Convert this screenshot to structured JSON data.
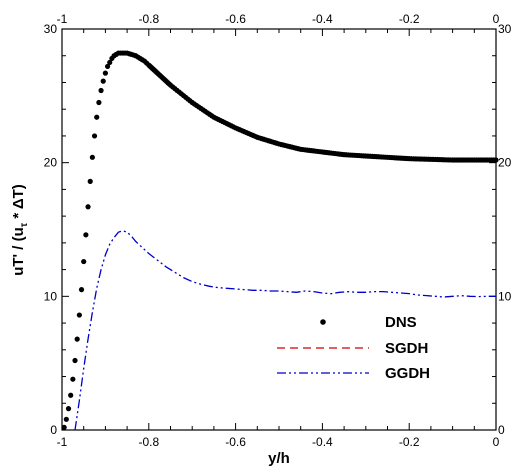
{
  "chart_data": {
    "type": "line",
    "xlabel": "y/h",
    "ylabel": "uT' / (u",
    "ylabel_sub": "τ",
    "ylabel_tail": " * ΔT)",
    "xlim": [
      -1,
      0
    ],
    "ylim": [
      0,
      30
    ],
    "x_ticks": [
      "-1",
      "-0.8",
      "-0.6",
      "-0.4",
      "-0.2",
      "0"
    ],
    "y_ticks": [
      "0",
      "10",
      "20",
      "30"
    ],
    "y_ticks_right": [
      "0",
      "10",
      "20",
      "30"
    ],
    "grid": false,
    "legend_position": "lower-right",
    "series": [
      {
        "name": "DNS",
        "style": "markers",
        "color": "#000000",
        "x": [
          -0.995,
          -0.99,
          -0.985,
          -0.98,
          -0.975,
          -0.97,
          -0.965,
          -0.96,
          -0.955,
          -0.95,
          -0.945,
          -0.94,
          -0.935,
          -0.93,
          -0.925,
          -0.92,
          -0.915,
          -0.91,
          -0.905,
          -0.9,
          -0.895,
          -0.89,
          -0.885,
          -0.88,
          -0.875,
          -0.87,
          -0.865,
          -0.86,
          -0.855,
          -0.85,
          -0.845,
          -0.84,
          -0.835,
          -0.83,
          -0.825,
          -0.82,
          -0.815,
          -0.81,
          -0.805,
          -0.8,
          -0.78,
          -0.75,
          -0.7,
          -0.65,
          -0.6,
          -0.55,
          -0.5,
          -0.45,
          -0.4,
          -0.35,
          -0.3,
          -0.25,
          -0.2,
          -0.15,
          -0.1,
          -0.05,
          0.0
        ],
        "y": [
          0.2,
          0.8,
          1.6,
          2.6,
          3.8,
          5.2,
          6.8,
          8.6,
          10.5,
          12.6,
          14.6,
          16.7,
          18.6,
          20.4,
          22.0,
          23.4,
          24.5,
          25.4,
          26.1,
          26.7,
          27.2,
          27.5,
          27.8,
          28.0,
          28.1,
          28.2,
          28.2,
          28.2,
          28.2,
          28.2,
          28.15,
          28.1,
          28.05,
          28.0,
          27.9,
          27.8,
          27.7,
          27.6,
          27.45,
          27.3,
          26.7,
          25.8,
          24.5,
          23.4,
          22.6,
          21.9,
          21.4,
          21.0,
          20.8,
          20.6,
          20.5,
          20.4,
          20.3,
          20.25,
          20.2,
          20.2,
          20.2
        ]
      },
      {
        "name": "SGDH",
        "style": "dashed",
        "color": "#cc0000",
        "x": [],
        "y": []
      },
      {
        "name": "GGDH",
        "style": "dash-dot-dot",
        "color": "#0000cc",
        "x": [
          -0.97,
          -0.96,
          -0.95,
          -0.94,
          -0.93,
          -0.92,
          -0.91,
          -0.9,
          -0.89,
          -0.88,
          -0.87,
          -0.86,
          -0.85,
          -0.84,
          -0.83,
          -0.82,
          -0.81,
          -0.8,
          -0.78,
          -0.76,
          -0.74,
          -0.72,
          -0.7,
          -0.68,
          -0.66,
          -0.64,
          -0.62,
          -0.6,
          -0.58,
          -0.56,
          -0.54,
          -0.52,
          -0.5,
          -0.48,
          -0.46,
          -0.44,
          -0.42,
          -0.4,
          -0.38,
          -0.36,
          -0.34,
          -0.32,
          -0.3,
          -0.28,
          -0.26,
          -0.24,
          -0.22,
          -0.2,
          -0.18,
          -0.16,
          -0.14,
          -0.12,
          -0.1,
          -0.08,
          -0.06,
          -0.04,
          -0.02,
          0.0
        ],
        "y": [
          0.0,
          2.2,
          4.6,
          6.8,
          8.8,
          10.6,
          12.0,
          13.1,
          13.9,
          14.4,
          14.8,
          14.9,
          14.8,
          14.5,
          14.1,
          13.8,
          13.5,
          13.2,
          12.7,
          12.2,
          11.8,
          11.4,
          11.1,
          10.9,
          10.75,
          10.65,
          10.6,
          10.55,
          10.5,
          10.45,
          10.45,
          10.4,
          10.4,
          10.35,
          10.3,
          10.4,
          10.35,
          10.25,
          10.2,
          10.3,
          10.35,
          10.3,
          10.3,
          10.35,
          10.35,
          10.3,
          10.25,
          10.2,
          10.1,
          10.05,
          10.0,
          9.95,
          10.0,
          10.05,
          10.0,
          9.98,
          10.0,
          10.0
        ]
      }
    ]
  }
}
